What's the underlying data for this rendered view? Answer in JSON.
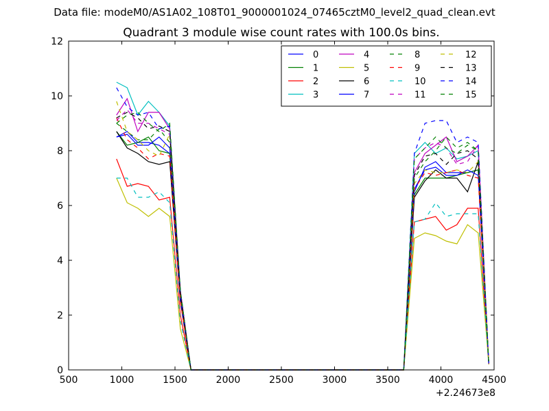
{
  "chart_data": {
    "type": "line",
    "suptitle": "Data file: modeM0/AS1A02_108T01_9000001024_07465cztM0_level2_quad_clean.evt",
    "title": "Quadrant 3 module wise count rates with 100.0s bins.",
    "xlabel": "",
    "ylabel": "",
    "x_offset_label": "+2.24673e8",
    "xlim": [
      500,
      4500
    ],
    "ylim": [
      0,
      12
    ],
    "xticks": [
      "500",
      "1000",
      "1500",
      "2000",
      "2500",
      "3000",
      "3500",
      "4000",
      "4500"
    ],
    "yticks": [
      "0",
      "2",
      "4",
      "6",
      "8",
      "10",
      "12"
    ],
    "grid": false,
    "legend_position": "top-right",
    "x": [
      950,
      1050,
      1150,
      1250,
      1350,
      1450,
      1550,
      1650,
      1750,
      1850,
      1950,
      2050,
      2150,
      2250,
      2350,
      2450,
      2550,
      2650,
      2750,
      2850,
      2950,
      3050,
      3150,
      3250,
      3350,
      3450,
      3550,
      3650,
      3750,
      3850,
      3950,
      4050,
      4150,
      4250,
      4350,
      4450
    ],
    "series": [
      {
        "name": "0",
        "color": "#0000ff",
        "dash": "solid",
        "values": [
          8.5,
          8.7,
          8.3,
          8.3,
          8.2,
          7.9,
          2.6,
          0.0,
          0.0,
          0.0,
          0.0,
          0.0,
          0.0,
          0.0,
          0.0,
          0.0,
          0.0,
          0.0,
          0.0,
          0.0,
          0.0,
          0.0,
          0.0,
          0.0,
          0.0,
          0.0,
          0.0,
          0.0,
          6.5,
          7.4,
          7.6,
          7.2,
          7.2,
          7.2,
          7.3,
          0.2
        ]
      },
      {
        "name": "1",
        "color": "#008000",
        "dash": "solid",
        "values": [
          8.7,
          8.2,
          8.3,
          8.5,
          8.0,
          7.9,
          2.6,
          0.0,
          0.0,
          0.0,
          0.0,
          0.0,
          0.0,
          0.0,
          0.0,
          0.0,
          0.0,
          0.0,
          0.0,
          0.0,
          0.0,
          0.0,
          0.0,
          0.0,
          0.0,
          0.0,
          0.0,
          0.0,
          6.4,
          7.0,
          7.0,
          7.0,
          7.1,
          7.2,
          7.3,
          0.2
        ]
      },
      {
        "name": "2",
        "color": "#ff0000",
        "dash": "solid",
        "values": [
          7.7,
          6.7,
          6.8,
          6.7,
          6.2,
          6.3,
          2.0,
          0.0,
          0.0,
          0.0,
          0.0,
          0.0,
          0.0,
          0.0,
          0.0,
          0.0,
          0.0,
          0.0,
          0.0,
          0.0,
          0.0,
          0.0,
          0.0,
          0.0,
          0.0,
          0.0,
          0.0,
          0.0,
          5.4,
          5.5,
          5.6,
          5.1,
          5.3,
          5.9,
          5.9,
          0.2
        ]
      },
      {
        "name": "3",
        "color": "#00bfbf",
        "dash": "solid",
        "values": [
          10.5,
          10.3,
          9.3,
          9.8,
          9.4,
          8.9,
          2.9,
          0.0,
          0.0,
          0.0,
          0.0,
          0.0,
          0.0,
          0.0,
          0.0,
          0.0,
          0.0,
          0.0,
          0.0,
          0.0,
          0.0,
          0.0,
          0.0,
          0.0,
          0.0,
          0.0,
          0.0,
          0.0,
          7.9,
          8.3,
          7.9,
          8.1,
          7.7,
          7.8,
          8.0,
          0.2
        ]
      },
      {
        "name": "4",
        "color": "#bf00bf",
        "dash": "solid",
        "values": [
          9.3,
          9.9,
          8.7,
          9.4,
          9.4,
          8.8,
          2.9,
          0.0,
          0.0,
          0.0,
          0.0,
          0.0,
          0.0,
          0.0,
          0.0,
          0.0,
          0.0,
          0.0,
          0.0,
          0.0,
          0.0,
          0.0,
          0.0,
          0.0,
          0.0,
          0.0,
          0.0,
          0.0,
          7.2,
          7.9,
          8.2,
          8.5,
          7.6,
          7.8,
          8.2,
          0.2
        ]
      },
      {
        "name": "5",
        "color": "#bfbf00",
        "dash": "solid",
        "values": [
          7.0,
          6.1,
          5.9,
          5.6,
          5.9,
          5.6,
          1.5,
          0.0,
          0.0,
          0.0,
          0.0,
          0.0,
          0.0,
          0.0,
          0.0,
          0.0,
          0.0,
          0.0,
          0.0,
          0.0,
          0.0,
          0.0,
          0.0,
          0.0,
          0.0,
          0.0,
          0.0,
          0.0,
          4.8,
          5.0,
          4.9,
          4.7,
          4.6,
          5.3,
          5.0,
          0.2
        ]
      },
      {
        "name": "6",
        "color": "#000000",
        "dash": "solid",
        "values": [
          8.7,
          8.1,
          7.9,
          7.6,
          7.5,
          7.6,
          2.5,
          0.0,
          0.0,
          0.0,
          0.0,
          0.0,
          0.0,
          0.0,
          0.0,
          0.0,
          0.0,
          0.0,
          0.0,
          0.0,
          0.0,
          0.0,
          0.0,
          0.0,
          0.0,
          0.0,
          0.0,
          0.0,
          6.3,
          6.9,
          7.3,
          7.0,
          7.0,
          6.5,
          7.6,
          0.2
        ]
      },
      {
        "name": "7",
        "color": "#0000ff",
        "dash": "solid",
        "values": [
          8.5,
          8.6,
          8.2,
          8.2,
          8.5,
          8.1,
          2.6,
          0.0,
          0.0,
          0.0,
          0.0,
          0.0,
          0.0,
          0.0,
          0.0,
          0.0,
          0.0,
          0.0,
          0.0,
          0.0,
          0.0,
          0.0,
          0.0,
          0.0,
          0.0,
          0.0,
          0.0,
          0.0,
          6.6,
          7.3,
          7.4,
          7.1,
          7.1,
          7.3,
          7.1,
          0.2
        ]
      },
      {
        "name": "8",
        "color": "#008000",
        "dash": "dashed",
        "values": [
          9.0,
          8.7,
          8.4,
          8.4,
          8.8,
          8.3,
          2.7,
          0.0,
          0.0,
          0.0,
          0.0,
          0.0,
          0.0,
          0.0,
          0.0,
          0.0,
          0.0,
          0.0,
          0.0,
          0.0,
          0.0,
          0.0,
          0.0,
          0.0,
          0.0,
          0.0,
          0.0,
          0.0,
          7.0,
          7.6,
          8.0,
          8.5,
          8.1,
          8.3,
          8.0,
          0.2
        ]
      },
      {
        "name": "9",
        "color": "#ff0000",
        "dash": "dashed",
        "values": [
          9.2,
          8.4,
          8.1,
          7.7,
          7.9,
          7.8,
          2.5,
          0.0,
          0.0,
          0.0,
          0.0,
          0.0,
          0.0,
          0.0,
          0.0,
          0.0,
          0.0,
          0.0,
          0.0,
          0.0,
          0.0,
          0.0,
          0.0,
          0.0,
          0.0,
          0.0,
          0.0,
          0.0,
          6.6,
          7.2,
          7.1,
          7.2,
          7.3,
          7.1,
          7.0,
          0.2
        ]
      },
      {
        "name": "10",
        "color": "#00bfbf",
        "dash": "dashed",
        "values": [
          7.0,
          7.0,
          6.3,
          6.3,
          6.5,
          6.1,
          1.8,
          0.0,
          0.0,
          0.0,
          0.0,
          0.0,
          0.0,
          0.0,
          0.0,
          0.0,
          0.0,
          0.0,
          0.0,
          0.0,
          0.0,
          0.0,
          0.0,
          0.0,
          0.0,
          0.0,
          0.0,
          0.0,
          5.4,
          5.5,
          6.1,
          5.6,
          5.7,
          5.7,
          5.7,
          0.2
        ]
      },
      {
        "name": "11",
        "color": "#bf00bf",
        "dash": "dashed",
        "values": [
          9.1,
          9.5,
          9.0,
          9.0,
          8.8,
          8.6,
          2.8,
          0.0,
          0.0,
          0.0,
          0.0,
          0.0,
          0.0,
          0.0,
          0.0,
          0.0,
          0.0,
          0.0,
          0.0,
          0.0,
          0.0,
          0.0,
          0.0,
          0.0,
          0.0,
          0.0,
          0.0,
          0.0,
          7.7,
          8.1,
          8.3,
          8.1,
          7.5,
          7.6,
          8.2,
          0.2
        ]
      },
      {
        "name": "12",
        "color": "#bfbf00",
        "dash": "dashed",
        "values": [
          9.8,
          8.7,
          8.4,
          8.0,
          7.8,
          8.6,
          2.8,
          0.0,
          0.0,
          0.0,
          0.0,
          0.0,
          0.0,
          0.0,
          0.0,
          0.0,
          0.0,
          0.0,
          0.0,
          0.0,
          0.0,
          0.0,
          0.0,
          0.0,
          0.0,
          0.0,
          0.0,
          0.0,
          6.8,
          7.3,
          7.2,
          7.2,
          7.3,
          7.2,
          7.6,
          0.2
        ]
      },
      {
        "name": "13",
        "color": "#000000",
        "dash": "dashed",
        "values": [
          9.2,
          9.4,
          9.2,
          8.8,
          8.9,
          8.7,
          2.8,
          0.0,
          0.0,
          0.0,
          0.0,
          0.0,
          0.0,
          0.0,
          0.0,
          0.0,
          0.0,
          0.0,
          0.0,
          0.0,
          0.0,
          0.0,
          0.0,
          0.0,
          0.0,
          0.0,
          0.0,
          0.0,
          7.1,
          7.8,
          7.9,
          7.5,
          7.9,
          8.0,
          7.7,
          0.2
        ]
      },
      {
        "name": "14",
        "color": "#0000ff",
        "dash": "dashed",
        "values": [
          10.3,
          9.6,
          9.3,
          9.4,
          8.8,
          8.9,
          2.9,
          0.0,
          0.0,
          0.0,
          0.0,
          0.0,
          0.0,
          0.0,
          0.0,
          0.0,
          0.0,
          0.0,
          0.0,
          0.0,
          0.0,
          0.0,
          0.0,
          0.0,
          0.0,
          0.0,
          0.0,
          0.0,
          7.9,
          9.0,
          9.1,
          9.1,
          8.3,
          8.5,
          8.3,
          0.2
        ]
      },
      {
        "name": "15",
        "color": "#008000",
        "dash": "dashed",
        "values": [
          9.0,
          9.3,
          9.4,
          9.0,
          8.7,
          9.0,
          2.9,
          0.0,
          0.0,
          0.0,
          0.0,
          0.0,
          0.0,
          0.0,
          0.0,
          0.0,
          0.0,
          0.0,
          0.0,
          0.0,
          0.0,
          0.0,
          0.0,
          0.0,
          0.0,
          0.0,
          0.0,
          0.0,
          7.7,
          8.1,
          8.5,
          8.1,
          7.9,
          8.2,
          8.0,
          0.2
        ]
      }
    ]
  }
}
